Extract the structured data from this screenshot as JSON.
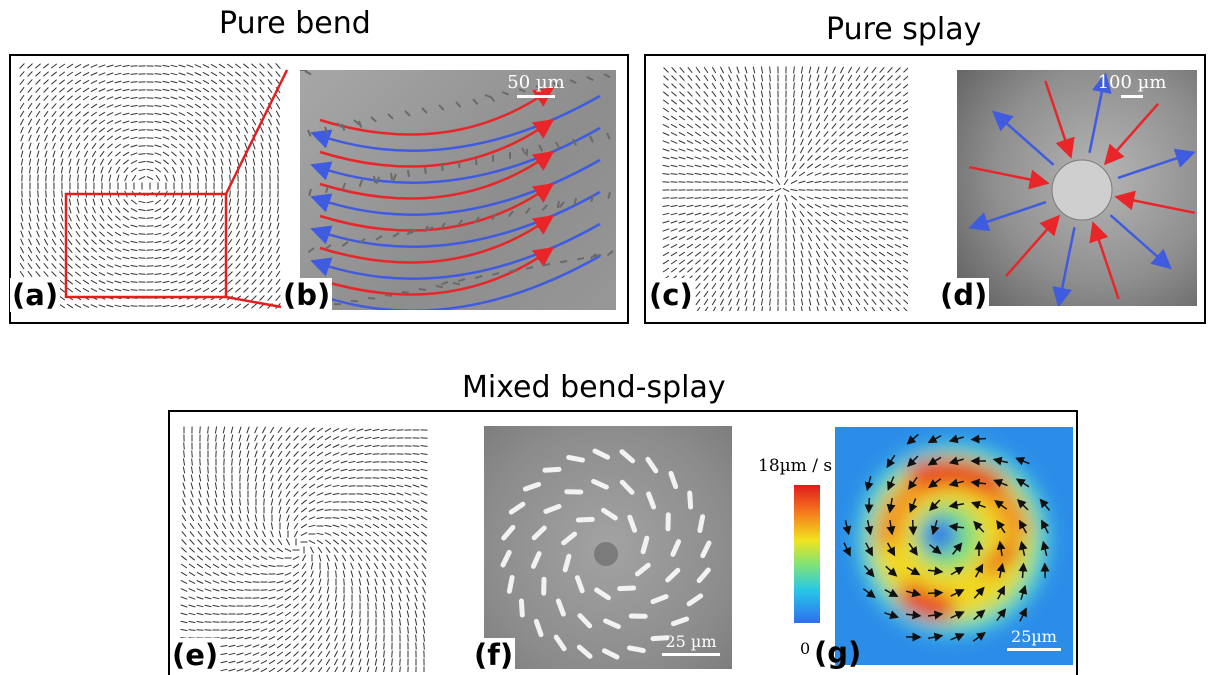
{
  "titles": {
    "pure_bend": "Pure bend",
    "pure_splay": "Pure splay",
    "mixed": "Mixed bend-splay"
  },
  "labels": {
    "a": "(a)",
    "b": "(b)",
    "c": "(c)",
    "d": "(d)",
    "e": "(e)",
    "f": "(f)",
    "g": "(g)"
  },
  "scale_bars": {
    "b": "50 µm",
    "d": "100 µm",
    "f": "25 µm",
    "g": "25µm"
  },
  "colorbar": {
    "max_label": "18µm / s",
    "min_label": "0"
  },
  "colors": {
    "red_arrow": "#e8262a",
    "blue_arrow": "#3f5be0",
    "inset_box": "#e02020"
  }
}
